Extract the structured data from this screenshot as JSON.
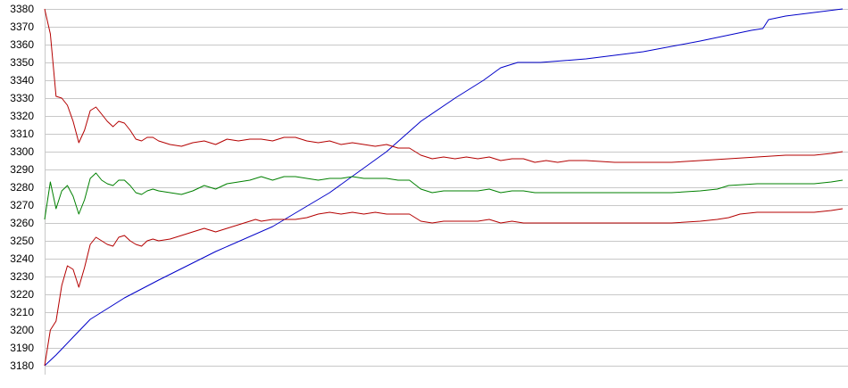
{
  "chart_data": {
    "type": "line",
    "title": "",
    "xlabel": "",
    "ylabel": "",
    "ylim": [
      3180,
      3380
    ],
    "y_ticks": [
      3180,
      3190,
      3200,
      3210,
      3220,
      3230,
      3240,
      3250,
      3260,
      3270,
      3280,
      3290,
      3300,
      3310,
      3320,
      3330,
      3340,
      3350,
      3360,
      3370,
      3380
    ],
    "x_range": [
      0,
      140
    ],
    "grid": true,
    "legend": "none",
    "colors": {
      "blue": "#0000c8",
      "red": "#b40000",
      "green": "#008000",
      "grid": "#c8c8c8"
    },
    "series": [
      {
        "color": "#0000c8",
        "points": [
          [
            0,
            3180
          ],
          [
            2,
            3186
          ],
          [
            5,
            3196
          ],
          [
            8,
            3206
          ],
          [
            10,
            3210
          ],
          [
            14,
            3218
          ],
          [
            20,
            3228
          ],
          [
            30,
            3244
          ],
          [
            40,
            3258
          ],
          [
            50,
            3277
          ],
          [
            60,
            3300
          ],
          [
            66,
            3317
          ],
          [
            72,
            3330
          ],
          [
            77,
            3340
          ],
          [
            80,
            3347
          ],
          [
            83,
            3350
          ],
          [
            87,
            3350
          ],
          [
            95,
            3352
          ],
          [
            105,
            3356
          ],
          [
            115,
            3362
          ],
          [
            124,
            3368
          ],
          [
            126,
            3369
          ],
          [
            127,
            3374
          ],
          [
            130,
            3376
          ],
          [
            135,
            3378
          ],
          [
            140,
            3380
          ]
        ]
      },
      {
        "color": "#b40000",
        "points": [
          [
            0,
            3380
          ],
          [
            1,
            3366
          ],
          [
            2,
            3331
          ],
          [
            3,
            3330
          ],
          [
            4,
            3326
          ],
          [
            5,
            3317
          ],
          [
            6,
            3305
          ],
          [
            7,
            3312
          ],
          [
            8,
            3323
          ],
          [
            9,
            3325
          ],
          [
            10,
            3321
          ],
          [
            11,
            3317
          ],
          [
            12,
            3314
          ],
          [
            13,
            3317
          ],
          [
            14,
            3316
          ],
          [
            15,
            3312
          ],
          [
            16,
            3307
          ],
          [
            17,
            3306
          ],
          [
            18,
            3308
          ],
          [
            19,
            3308
          ],
          [
            20,
            3306
          ],
          [
            22,
            3304
          ],
          [
            24,
            3303
          ],
          [
            26,
            3305
          ],
          [
            28,
            3306
          ],
          [
            30,
            3304
          ],
          [
            32,
            3307
          ],
          [
            34,
            3306
          ],
          [
            36,
            3307
          ],
          [
            38,
            3307
          ],
          [
            40,
            3306
          ],
          [
            42,
            3308
          ],
          [
            44,
            3308
          ],
          [
            46,
            3306
          ],
          [
            48,
            3305
          ],
          [
            50,
            3306
          ],
          [
            52,
            3304
          ],
          [
            54,
            3305
          ],
          [
            56,
            3304
          ],
          [
            58,
            3303
          ],
          [
            60,
            3304
          ],
          [
            62,
            3302
          ],
          [
            64,
            3302
          ],
          [
            66,
            3298
          ],
          [
            68,
            3296
          ],
          [
            70,
            3297
          ],
          [
            72,
            3296
          ],
          [
            74,
            3297
          ],
          [
            76,
            3296
          ],
          [
            78,
            3297
          ],
          [
            80,
            3295
          ],
          [
            82,
            3296
          ],
          [
            84,
            3296
          ],
          [
            86,
            3294
          ],
          [
            88,
            3295
          ],
          [
            90,
            3294
          ],
          [
            92,
            3295
          ],
          [
            95,
            3295
          ],
          [
            100,
            3294
          ],
          [
            105,
            3294
          ],
          [
            110,
            3294
          ],
          [
            115,
            3295
          ],
          [
            120,
            3296
          ],
          [
            125,
            3297
          ],
          [
            130,
            3298
          ],
          [
            135,
            3298
          ],
          [
            138,
            3299
          ],
          [
            140,
            3300
          ]
        ]
      },
      {
        "color": "#008000",
        "points": [
          [
            0,
            3262
          ],
          [
            1,
            3283
          ],
          [
            2,
            3268
          ],
          [
            3,
            3278
          ],
          [
            4,
            3281
          ],
          [
            5,
            3275
          ],
          [
            6,
            3265
          ],
          [
            7,
            3273
          ],
          [
            8,
            3285
          ],
          [
            9,
            3288
          ],
          [
            10,
            3284
          ],
          [
            11,
            3282
          ],
          [
            12,
            3281
          ],
          [
            13,
            3284
          ],
          [
            14,
            3284
          ],
          [
            15,
            3281
          ],
          [
            16,
            3277
          ],
          [
            17,
            3276
          ],
          [
            18,
            3278
          ],
          [
            19,
            3279
          ],
          [
            20,
            3278
          ],
          [
            22,
            3277
          ],
          [
            24,
            3276
          ],
          [
            26,
            3278
          ],
          [
            28,
            3281
          ],
          [
            30,
            3279
          ],
          [
            32,
            3282
          ],
          [
            34,
            3283
          ],
          [
            36,
            3284
          ],
          [
            38,
            3286
          ],
          [
            40,
            3284
          ],
          [
            42,
            3286
          ],
          [
            44,
            3286
          ],
          [
            46,
            3285
          ],
          [
            48,
            3284
          ],
          [
            50,
            3285
          ],
          [
            52,
            3285
          ],
          [
            54,
            3286
          ],
          [
            56,
            3285
          ],
          [
            58,
            3285
          ],
          [
            60,
            3285
          ],
          [
            62,
            3284
          ],
          [
            64,
            3284
          ],
          [
            66,
            3279
          ],
          [
            68,
            3277
          ],
          [
            70,
            3278
          ],
          [
            72,
            3278
          ],
          [
            74,
            3278
          ],
          [
            76,
            3278
          ],
          [
            78,
            3279
          ],
          [
            80,
            3277
          ],
          [
            82,
            3278
          ],
          [
            84,
            3278
          ],
          [
            86,
            3277
          ],
          [
            88,
            3277
          ],
          [
            90,
            3277
          ],
          [
            92,
            3277
          ],
          [
            95,
            3277
          ],
          [
            100,
            3277
          ],
          [
            105,
            3277
          ],
          [
            110,
            3277
          ],
          [
            115,
            3278
          ],
          [
            118,
            3279
          ],
          [
            120,
            3281
          ],
          [
            125,
            3282
          ],
          [
            130,
            3282
          ],
          [
            135,
            3282
          ],
          [
            138,
            3283
          ],
          [
            140,
            3284
          ]
        ]
      },
      {
        "color": "#b40000",
        "points": [
          [
            0,
            3180
          ],
          [
            1,
            3200
          ],
          [
            2,
            3205
          ],
          [
            3,
            3225
          ],
          [
            4,
            3236
          ],
          [
            5,
            3234
          ],
          [
            6,
            3224
          ],
          [
            7,
            3235
          ],
          [
            8,
            3248
          ],
          [
            9,
            3252
          ],
          [
            10,
            3250
          ],
          [
            11,
            3248
          ],
          [
            12,
            3247
          ],
          [
            13,
            3252
          ],
          [
            14,
            3253
          ],
          [
            15,
            3250
          ],
          [
            16,
            3248
          ],
          [
            17,
            3247
          ],
          [
            18,
            3250
          ],
          [
            19,
            3251
          ],
          [
            20,
            3250
          ],
          [
            22,
            3251
          ],
          [
            24,
            3253
          ],
          [
            26,
            3255
          ],
          [
            28,
            3257
          ],
          [
            30,
            3255
          ],
          [
            32,
            3257
          ],
          [
            34,
            3259
          ],
          [
            36,
            3261
          ],
          [
            37,
            3262
          ],
          [
            38,
            3261
          ],
          [
            40,
            3262
          ],
          [
            42,
            3262
          ],
          [
            44,
            3262
          ],
          [
            46,
            3263
          ],
          [
            48,
            3265
          ],
          [
            50,
            3266
          ],
          [
            52,
            3265
          ],
          [
            54,
            3266
          ],
          [
            56,
            3265
          ],
          [
            58,
            3266
          ],
          [
            60,
            3265
          ],
          [
            62,
            3265
          ],
          [
            64,
            3265
          ],
          [
            66,
            3261
          ],
          [
            68,
            3260
          ],
          [
            70,
            3261
          ],
          [
            72,
            3261
          ],
          [
            74,
            3261
          ],
          [
            76,
            3261
          ],
          [
            78,
            3262
          ],
          [
            80,
            3260
          ],
          [
            82,
            3261
          ],
          [
            84,
            3260
          ],
          [
            86,
            3260
          ],
          [
            88,
            3260
          ],
          [
            90,
            3260
          ],
          [
            92,
            3260
          ],
          [
            95,
            3260
          ],
          [
            100,
            3260
          ],
          [
            105,
            3260
          ],
          [
            110,
            3260
          ],
          [
            115,
            3261
          ],
          [
            118,
            3262
          ],
          [
            120,
            3263
          ],
          [
            122,
            3265
          ],
          [
            125,
            3266
          ],
          [
            130,
            3266
          ],
          [
            135,
            3266
          ],
          [
            138,
            3267
          ],
          [
            140,
            3268
          ]
        ]
      }
    ]
  }
}
